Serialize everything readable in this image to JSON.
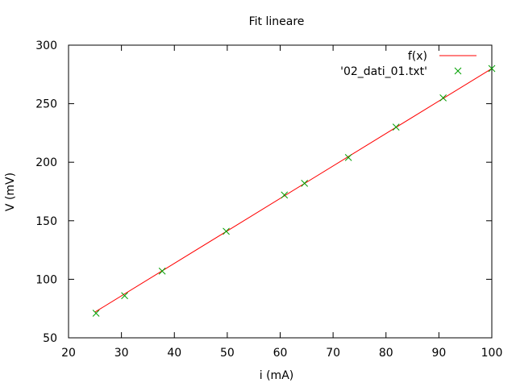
{
  "chart_data": {
    "type": "scatter",
    "title": "Fit lineare",
    "xlabel": "i (mA)",
    "ylabel": "V (mV)",
    "xlim": [
      20,
      100
    ],
    "ylim": [
      50,
      300
    ],
    "xticks": [
      20,
      30,
      40,
      50,
      60,
      70,
      80,
      90,
      100
    ],
    "yticks": [
      50,
      100,
      150,
      200,
      250,
      300
    ],
    "grid": false,
    "legend_position": "top-right",
    "series": [
      {
        "name": "f(x)",
        "kind": "line",
        "color": "#ff0000",
        "x": [
          25,
          100
        ],
        "y": [
          72,
          280
        ]
      },
      {
        "name": "'02_dati_01.txt'",
        "kind": "points",
        "marker": "x",
        "color": "#00a000",
        "x": [
          25.2,
          30.6,
          37.7,
          49.8,
          60.8,
          64.6,
          72.9,
          81.9,
          90.8,
          100
        ],
        "y": [
          71,
          86,
          107,
          141,
          172,
          182,
          204,
          230,
          255,
          280
        ]
      }
    ]
  }
}
